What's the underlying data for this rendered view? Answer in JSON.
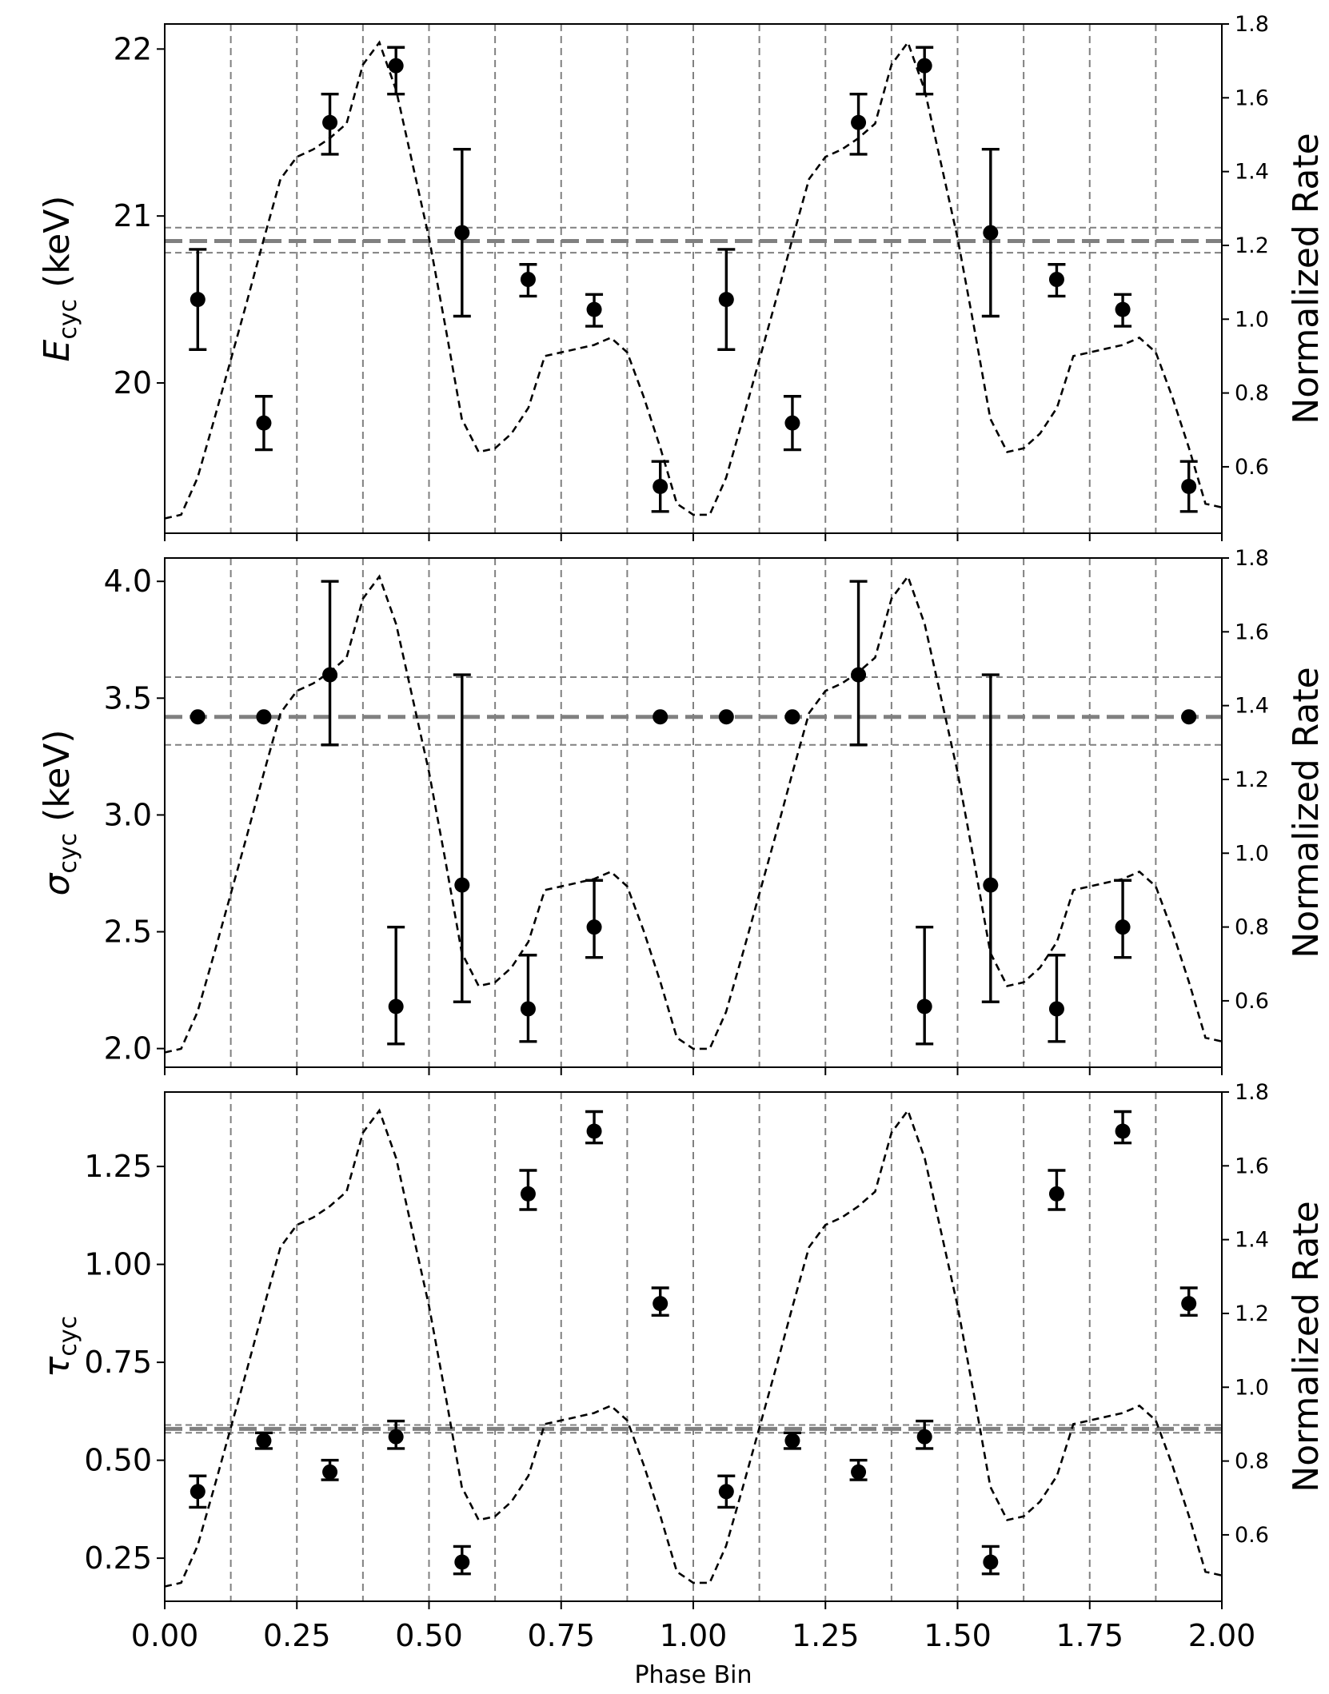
{
  "chart_data": {
    "type": "scatter",
    "x_axis": {
      "label": "Phase Bin",
      "range": [
        0.0,
        2.0
      ],
      "ticks": [
        0.0,
        0.25,
        0.5,
        0.75,
        1.0,
        1.25,
        1.5,
        1.75,
        2.0
      ],
      "tick_labels": [
        "0.00",
        "0.25",
        "0.50",
        "0.75",
        "1.00",
        "1.25",
        "1.50",
        "1.75",
        "2.00"
      ]
    },
    "phase_bin_edges": [
      0.125,
      0.25,
      0.375,
      0.5,
      0.625,
      0.75,
      0.875,
      1.0,
      1.125,
      1.25,
      1.375,
      1.5,
      1.625,
      1.75,
      1.875
    ],
    "normalized_rate": {
      "label": "Normalized Rate",
      "style": "dashed line, black",
      "range": [
        0.42,
        1.8
      ],
      "ticks": [
        0.6,
        0.8,
        1.0,
        1.2,
        1.4,
        1.6,
        1.8
      ],
      "tick_labels": [
        "0.6",
        "0.8",
        "1.0",
        "1.2",
        "1.4",
        "1.6",
        "1.8"
      ],
      "x": [
        0.0,
        0.031,
        0.062,
        0.094,
        0.125,
        0.156,
        0.188,
        0.219,
        0.25,
        0.281,
        0.312,
        0.344,
        0.375,
        0.406,
        0.438,
        0.469,
        0.5,
        0.531,
        0.562,
        0.594,
        0.625,
        0.656,
        0.688,
        0.719,
        0.75,
        0.781,
        0.812,
        0.844,
        0.875,
        0.906,
        0.938,
        0.969,
        1.0,
        1.031,
        1.062,
        1.094,
        1.125,
        1.156,
        1.188,
        1.219,
        1.25,
        1.281,
        1.312,
        1.344,
        1.375,
        1.406,
        1.438,
        1.469,
        1.5,
        1.531,
        1.562,
        1.594,
        1.625,
        1.656,
        1.688,
        1.719,
        1.75,
        1.781,
        1.812,
        1.844,
        1.875,
        1.906,
        1.938,
        1.969,
        2.0
      ],
      "y": [
        0.46,
        0.47,
        0.57,
        0.73,
        0.89,
        1.05,
        1.22,
        1.38,
        1.44,
        1.46,
        1.49,
        1.53,
        1.69,
        1.75,
        1.62,
        1.42,
        1.22,
        0.98,
        0.73,
        0.64,
        0.65,
        0.69,
        0.76,
        0.9,
        0.91,
        0.92,
        0.93,
        0.95,
        0.91,
        0.79,
        0.65,
        0.5,
        0.47,
        0.47,
        0.57,
        0.73,
        0.89,
        1.05,
        1.22,
        1.38,
        1.44,
        1.46,
        1.49,
        1.53,
        1.69,
        1.75,
        1.62,
        1.42,
        1.22,
        0.98,
        0.73,
        0.64,
        0.65,
        0.69,
        0.76,
        0.9,
        0.91,
        0.92,
        0.93,
        0.95,
        0.91,
        0.79,
        0.65,
        0.5,
        0.49
      ]
    },
    "panels": [
      {
        "name": "E_cyc",
        "ylabel_main": "E",
        "ylabel_sub": "cyc",
        "ylabel_unit": " (keV)",
        "ylabel_italic": true,
        "ylim": [
          19.1,
          22.15
        ],
        "yticks": [
          20,
          21,
          22
        ],
        "ytick_labels": [
          "20",
          "21",
          "22"
        ],
        "average": 20.85,
        "band": [
          20.78,
          20.93
        ],
        "x": [
          0.0625,
          0.1875,
          0.3125,
          0.4375,
          0.5625,
          0.6875,
          0.8125,
          0.9375,
          1.0625,
          1.1875,
          1.3125,
          1.4375,
          1.5625,
          1.6875,
          1.8125,
          1.9375
        ],
        "values": [
          20.5,
          19.76,
          21.56,
          21.9,
          20.9,
          20.62,
          20.44,
          19.38,
          20.5,
          19.76,
          21.56,
          21.9,
          20.9,
          20.62,
          20.44,
          19.38
        ],
        "err_low": [
          20.2,
          19.6,
          21.37,
          21.73,
          20.4,
          20.52,
          20.34,
          19.23,
          20.2,
          19.6,
          21.37,
          21.73,
          20.4,
          20.52,
          20.34,
          19.23
        ],
        "err_high": [
          20.8,
          19.92,
          21.73,
          22.01,
          21.4,
          20.71,
          20.53,
          19.53,
          20.8,
          19.92,
          21.73,
          22.01,
          21.4,
          20.71,
          20.53,
          19.53
        ]
      },
      {
        "name": "sigma_cyc",
        "ylabel_main": "σ",
        "ylabel_sub": "cyc",
        "ylabel_unit": " (keV)",
        "ylabel_italic": true,
        "ylim": [
          1.92,
          4.1
        ],
        "yticks": [
          2.0,
          2.5,
          3.0,
          3.5,
          4.0
        ],
        "ytick_labels": [
          "2.0",
          "2.5",
          "3.0",
          "3.5",
          "4.0"
        ],
        "average": 3.42,
        "band": [
          3.3,
          3.59
        ],
        "x": [
          0.0625,
          0.1875,
          0.3125,
          0.4375,
          0.5625,
          0.6875,
          0.8125,
          0.9375,
          1.0625,
          1.1875,
          1.3125,
          1.4375,
          1.5625,
          1.6875,
          1.8125,
          1.9375
        ],
        "values": [
          3.42,
          3.42,
          3.6,
          2.18,
          2.7,
          2.17,
          2.52,
          3.42,
          3.42,
          3.42,
          3.6,
          2.18,
          2.7,
          2.17,
          2.52,
          3.42
        ],
        "err_low": [
          null,
          null,
          3.3,
          2.02,
          2.2,
          2.03,
          2.39,
          null,
          null,
          null,
          3.3,
          2.02,
          2.2,
          2.03,
          2.39,
          null
        ],
        "err_high": [
          null,
          null,
          4.0,
          2.52,
          3.6,
          2.4,
          2.72,
          null,
          null,
          null,
          4.0,
          2.52,
          3.6,
          2.4,
          2.72,
          null
        ]
      },
      {
        "name": "tau_cyc",
        "ylabel_main": "τ",
        "ylabel_sub": "cyc",
        "ylabel_unit": "",
        "ylabel_italic": true,
        "ylim": [
          0.14,
          1.44
        ],
        "yticks": [
          0.25,
          0.5,
          0.75,
          1.0,
          1.25
        ],
        "ytick_labels": [
          "0.25",
          "0.50",
          "0.75",
          "1.00",
          "1.25"
        ],
        "average": 0.58,
        "band": [
          0.57,
          0.59
        ],
        "x": [
          0.0625,
          0.1875,
          0.3125,
          0.4375,
          0.5625,
          0.6875,
          0.8125,
          0.9375,
          1.0625,
          1.1875,
          1.3125,
          1.4375,
          1.5625,
          1.6875,
          1.8125,
          1.9375
        ],
        "values": [
          0.42,
          0.55,
          0.47,
          0.56,
          0.24,
          1.18,
          1.34,
          0.9,
          0.42,
          0.55,
          0.47,
          0.56,
          0.24,
          1.18,
          1.34,
          0.9
        ],
        "err_low": [
          0.38,
          0.53,
          0.45,
          0.53,
          0.21,
          1.14,
          1.31,
          0.87,
          0.38,
          0.53,
          0.45,
          0.53,
          0.21,
          1.14,
          1.31,
          0.87
        ],
        "err_high": [
          0.46,
          0.57,
          0.5,
          0.6,
          0.28,
          1.24,
          1.39,
          0.94,
          0.46,
          0.57,
          0.5,
          0.6,
          0.28,
          1.24,
          1.39,
          0.94
        ]
      }
    ],
    "colors": {
      "points": "#000000",
      "rate_line": "#000000",
      "reference_lines": "#808080"
    }
  }
}
